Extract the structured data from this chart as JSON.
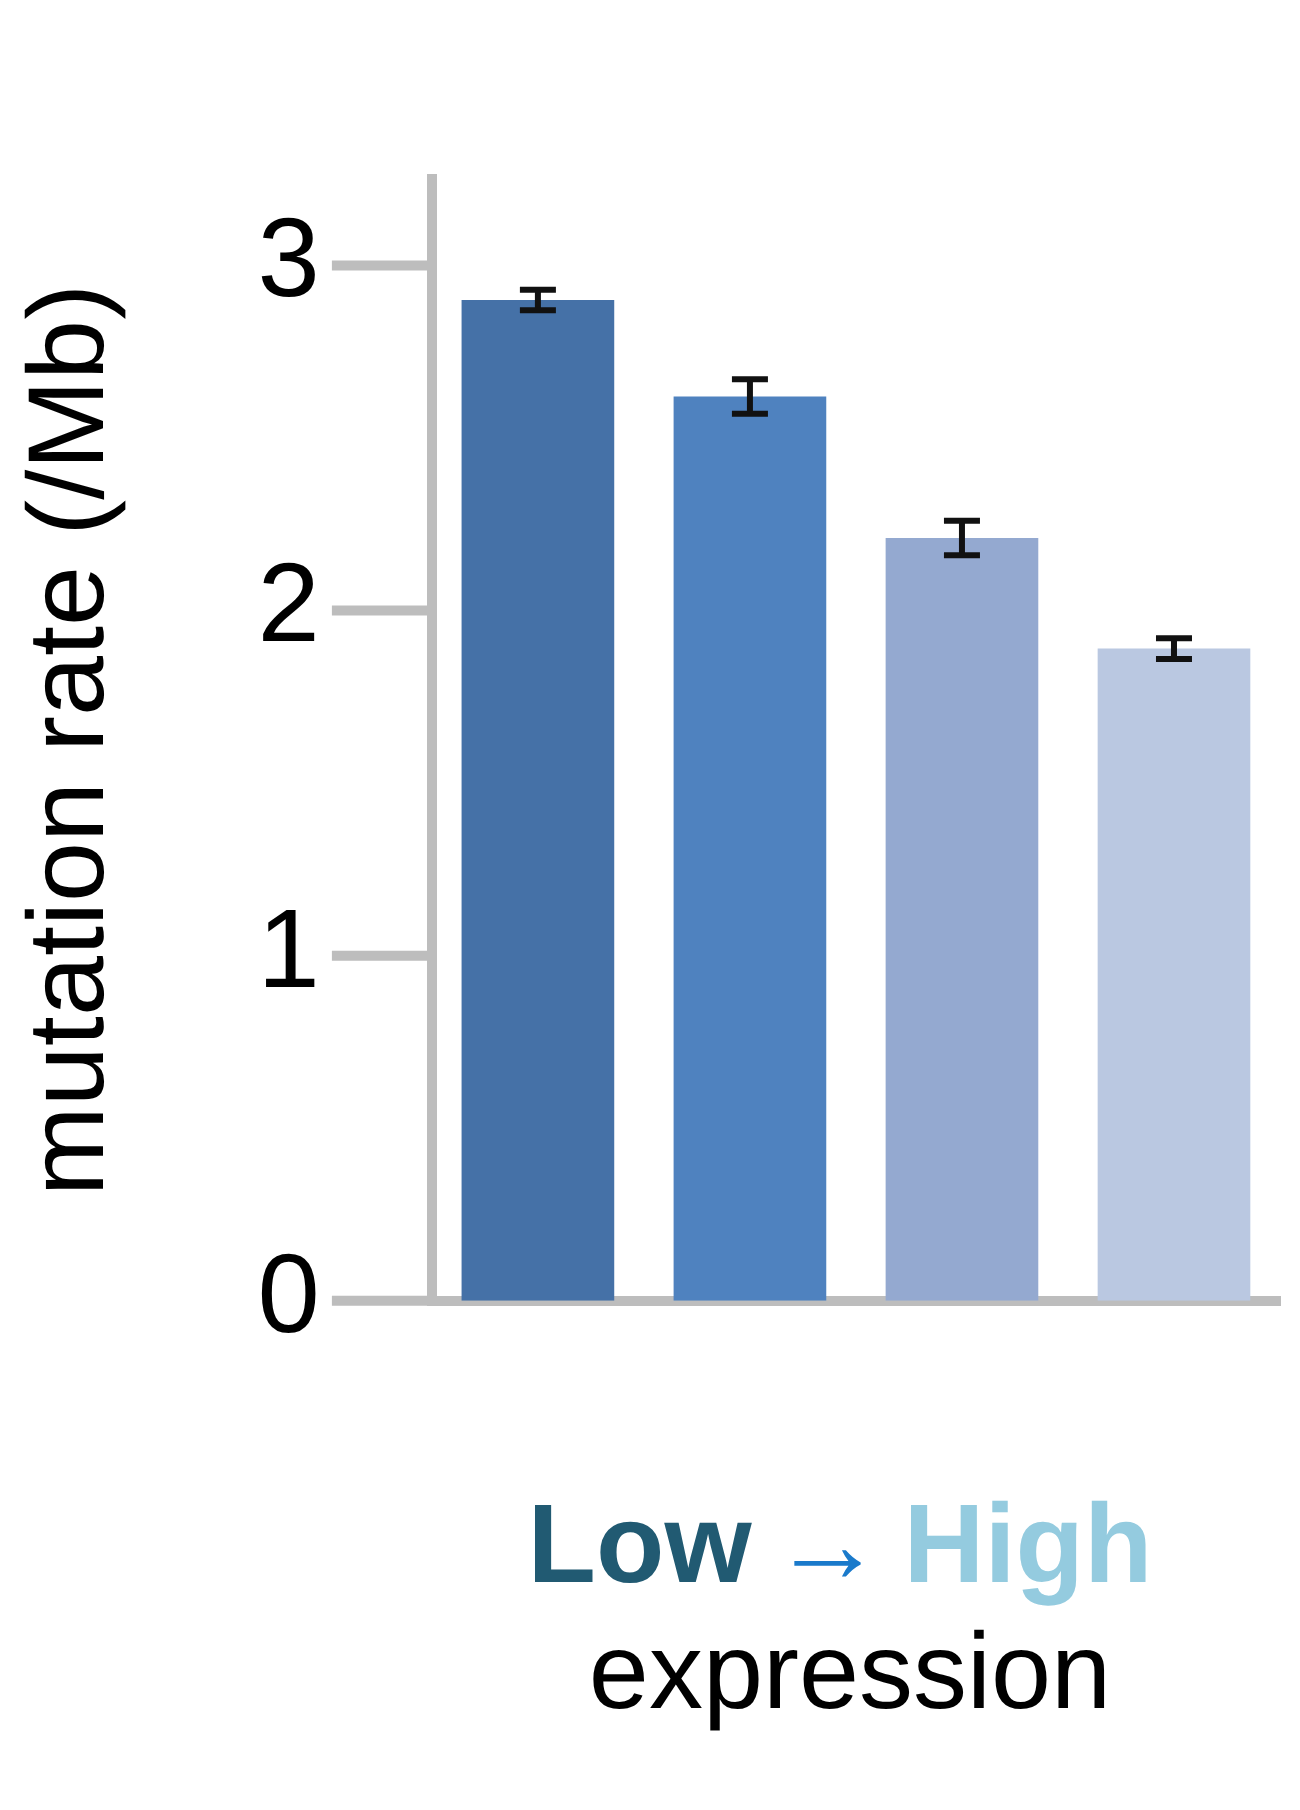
{
  "chart_data": {
    "type": "bar",
    "ylabel": "mutation rate (/Mb)",
    "xlabel": "expression",
    "annotations": [
      "Low",
      "→",
      "High"
    ],
    "categories": [
      null,
      null,
      null,
      null
    ],
    "values": [
      2.9,
      2.62,
      2.21,
      1.89
    ],
    "colors": [
      "#4571a7",
      "#4f82bf",
      "#94a9d0",
      "#bac8e1"
    ],
    "errors": [
      0.03,
      0.05,
      0.05,
      0.03
    ],
    "ylim": [
      0,
      3.25
    ],
    "yticks": [
      0,
      1,
      2,
      3
    ],
    "grid": false,
    "legend": false
  }
}
